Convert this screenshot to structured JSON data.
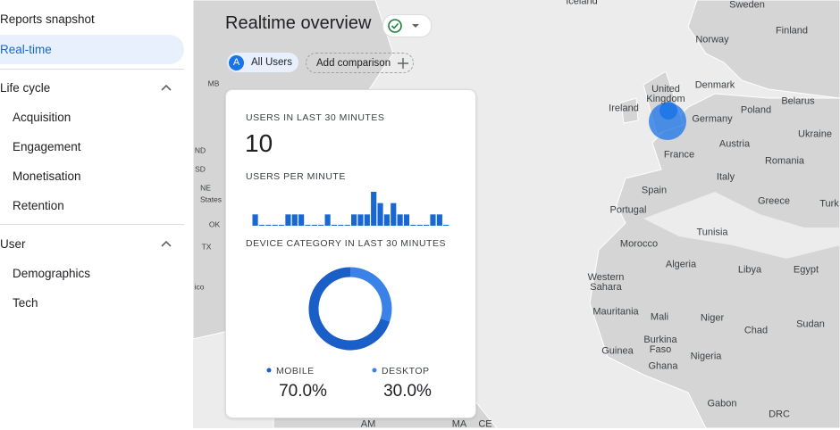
{
  "sidebar": {
    "items": [
      "Reports snapshot",
      "Real-time"
    ],
    "sections": [
      {
        "title": "Life cycle",
        "items": [
          "Acquisition",
          "Engagement",
          "Monetisation",
          "Retention"
        ]
      },
      {
        "title": "User",
        "items": [
          "Demographics",
          "Tech"
        ]
      }
    ]
  },
  "header": {
    "title": "Realtime overview",
    "avatar": "A",
    "audience": "All Users",
    "compare": "Add comparison"
  },
  "card": {
    "users_caption": "USERS IN LAST 30 MINUTES",
    "users": "10",
    "per_minute": {
      "title": "USERS PER MINUTE",
      "values": [
        1,
        0,
        0,
        0,
        0,
        1,
        1,
        1,
        0,
        0,
        0,
        1,
        0,
        0,
        0,
        1,
        1,
        1,
        3,
        2,
        1,
        2,
        1,
        1,
        0,
        0,
        0,
        1,
        1,
        0
      ],
      "ylim": [
        0,
        3
      ],
      "color": "#1967d2"
    },
    "device": {
      "type": "pie",
      "title": "DEVICE CATEGORY IN LAST 30 MINUTES",
      "series": [
        {
          "name": "MOBILE",
          "value": 70,
          "value_label": "70.0%",
          "color": "#1a5fc8"
        },
        {
          "name": "DESKTOP",
          "value": 30,
          "value_label": "30.0%",
          "color": "#3b82e8"
        }
      ]
    }
  },
  "map": {
    "labels": [
      "Iceland",
      "Sweden",
      "Finland",
      "Norway",
      "United Kingdom",
      "Denmark",
      "Ireland",
      "Belarus",
      "Poland",
      "Germany",
      "Ukraine",
      "Austria",
      "France",
      "Romania",
      "Spain",
      "Italy",
      "Greece",
      "Turk",
      "Portugal",
      "Tunisia",
      "Morocco",
      "Algeria",
      "Libya",
      "Egypt",
      "Western Sahara",
      "Mauritania",
      "Mali",
      "Niger",
      "Chad",
      "Sudan",
      "Burkina Faso",
      "Guinea",
      "Nigeria",
      "Ghana",
      "Gabon",
      "DRC",
      "MB",
      "ND",
      "SD",
      "NE",
      "States",
      "OK",
      "TX",
      "ico",
      "AM",
      "MA",
      "CE"
    ]
  }
}
